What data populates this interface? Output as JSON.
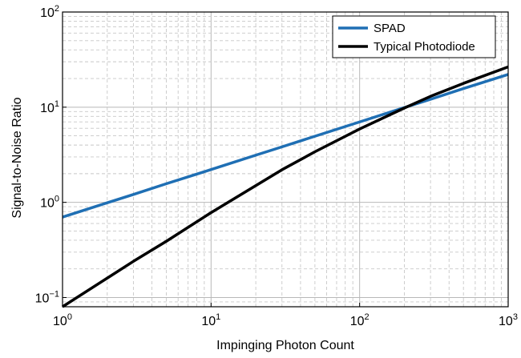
{
  "chart_data": {
    "type": "line",
    "xscale": "log",
    "yscale": "log",
    "xlim": [
      1,
      1000
    ],
    "ylim": [
      0.08,
      100
    ],
    "xlabel": "Impinging Photon Count",
    "ylabel": "Signal-to-Noise Ratio",
    "xticks": [
      {
        "value": 1,
        "base": "10",
        "exp": "0"
      },
      {
        "value": 10,
        "base": "10",
        "exp": "1"
      },
      {
        "value": 100,
        "base": "10",
        "exp": "2"
      },
      {
        "value": 1000,
        "base": "10",
        "exp": "3"
      }
    ],
    "yticks": [
      {
        "value": 0.1,
        "base": "10",
        "exp": "−1"
      },
      {
        "value": 1,
        "base": "10",
        "exp": "0"
      },
      {
        "value": 10,
        "base": "10",
        "exp": "1"
      },
      {
        "value": 100,
        "base": "10",
        "exp": "2"
      }
    ],
    "grid": true,
    "legend_position": "top-right",
    "series": [
      {
        "name": "SPAD",
        "color": "#1f6fb4",
        "x": [
          1,
          2,
          3,
          5,
          10,
          20,
          30,
          50,
          100,
          200,
          300,
          500,
          1000
        ],
        "y": [
          0.7,
          0.99,
          1.21,
          1.57,
          2.21,
          3.13,
          3.83,
          4.95,
          7.0,
          9.9,
          12.1,
          15.7,
          22.1
        ]
      },
      {
        "name": "Typical Photodiode",
        "color": "#000000",
        "x": [
          1,
          2,
          3,
          5,
          10,
          20,
          30,
          50,
          100,
          200,
          300,
          500,
          1000
        ],
        "y": [
          0.08,
          0.16,
          0.24,
          0.39,
          0.78,
          1.5,
          2.2,
          3.4,
          5.9,
          9.8,
          13.0,
          17.8,
          26.5
        ]
      }
    ]
  }
}
